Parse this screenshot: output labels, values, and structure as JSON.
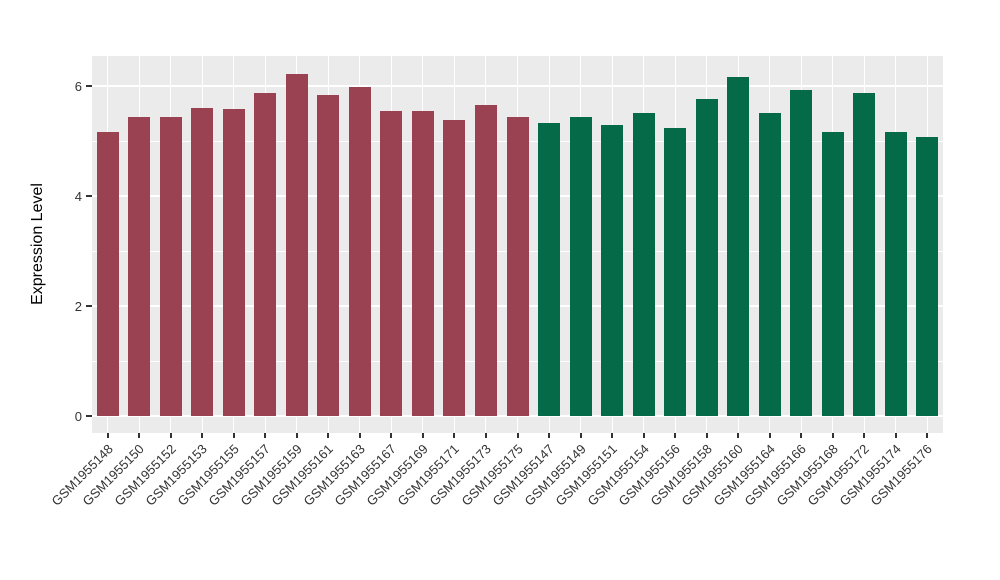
{
  "chart_data": {
    "type": "bar",
    "title": "",
    "xlabel": "",
    "ylabel": "Expression Level",
    "ylim": [
      -0.31,
      6.55
    ],
    "yticks": [
      0,
      2,
      4,
      6
    ],
    "ytick_labels": [
      "0",
      "2",
      "4",
      "6"
    ],
    "yticks_minor": [
      1,
      3,
      5
    ],
    "grid": true,
    "legend": false,
    "panel_bg": "#EBEBEB",
    "grid_color": "#FFFFFF",
    "group_colors": {
      "maroon": "#9A4252",
      "green": "#046A48"
    },
    "bars": [
      {
        "label": "GSM1955148",
        "value": 5.16,
        "group": "maroon"
      },
      {
        "label": "GSM1955150",
        "value": 5.43,
        "group": "maroon"
      },
      {
        "label": "GSM1955152",
        "value": 5.43,
        "group": "maroon"
      },
      {
        "label": "GSM1955153",
        "value": 5.6,
        "group": "maroon"
      },
      {
        "label": "GSM1955155",
        "value": 5.58,
        "group": "maroon"
      },
      {
        "label": "GSM1955157",
        "value": 5.87,
        "group": "maroon"
      },
      {
        "label": "GSM1955159",
        "value": 6.22,
        "group": "maroon"
      },
      {
        "label": "GSM1955161",
        "value": 5.84,
        "group": "maroon"
      },
      {
        "label": "GSM1955163",
        "value": 5.99,
        "group": "maroon"
      },
      {
        "label": "GSM1955167",
        "value": 5.54,
        "group": "maroon"
      },
      {
        "label": "GSM1955169",
        "value": 5.55,
        "group": "maroon"
      },
      {
        "label": "GSM1955171",
        "value": 5.38,
        "group": "maroon"
      },
      {
        "label": "GSM1955173",
        "value": 5.65,
        "group": "maroon"
      },
      {
        "label": "GSM1955175",
        "value": 5.44,
        "group": "maroon"
      },
      {
        "label": "GSM1955147",
        "value": 5.32,
        "group": "green"
      },
      {
        "label": "GSM1955149",
        "value": 5.43,
        "group": "green"
      },
      {
        "label": "GSM1955151",
        "value": 5.29,
        "group": "green"
      },
      {
        "label": "GSM1955154",
        "value": 5.51,
        "group": "green"
      },
      {
        "label": "GSM1955156",
        "value": 5.23,
        "group": "green"
      },
      {
        "label": "GSM1955158",
        "value": 5.76,
        "group": "green"
      },
      {
        "label": "GSM1955160",
        "value": 6.16,
        "group": "green"
      },
      {
        "label": "GSM1955164",
        "value": 5.51,
        "group": "green"
      },
      {
        "label": "GSM1955166",
        "value": 5.93,
        "group": "green"
      },
      {
        "label": "GSM1955168",
        "value": 5.16,
        "group": "green"
      },
      {
        "label": "GSM1955172",
        "value": 5.87,
        "group": "green"
      },
      {
        "label": "GSM1955174",
        "value": 5.16,
        "group": "green"
      },
      {
        "label": "GSM1955176",
        "value": 5.07,
        "group": "green"
      }
    ]
  }
}
